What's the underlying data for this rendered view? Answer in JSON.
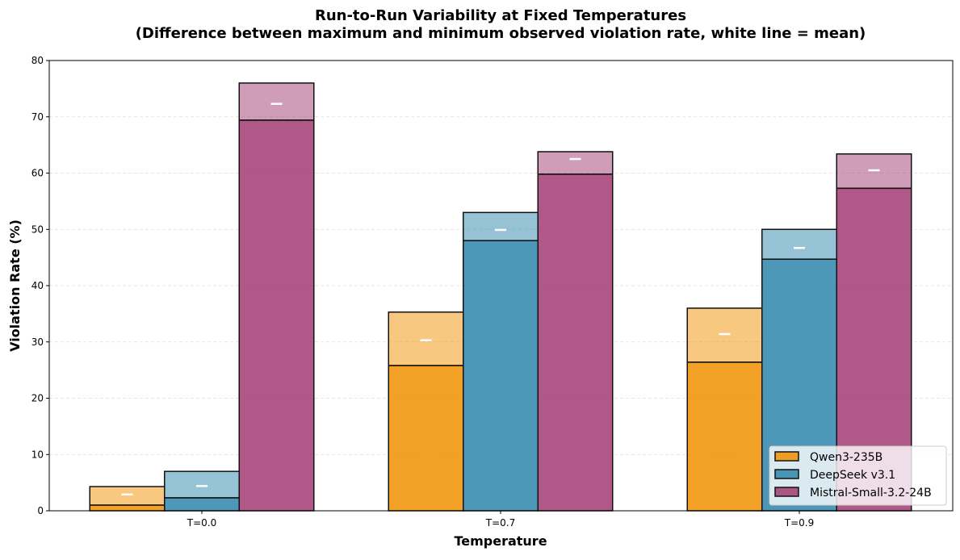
{
  "chart_data": {
    "type": "bar",
    "title": "Run-to-Run Variability at Fixed Temperatures",
    "subtitle": "(Difference between maximum and minimum observed violation rate, white line = mean)",
    "xlabel": "Temperature",
    "ylabel": "Violation Rate (%)",
    "ylim": [
      0,
      80
    ],
    "yticks": [
      0,
      10,
      20,
      30,
      40,
      50,
      60,
      70,
      80
    ],
    "categories": [
      "T=0.0",
      "T=0.7",
      "T=0.9"
    ],
    "grid": "horizontal dashed",
    "legend_position": "bottom-right",
    "series": [
      {
        "name": "Qwen3-235B",
        "color": "#F18F01",
        "min": [
          1.0,
          25.8,
          26.4
        ],
        "max": [
          4.3,
          35.3,
          36.0
        ],
        "mean": [
          2.9,
          30.3,
          31.4
        ]
      },
      {
        "name": "DeepSeek v3.1",
        "color": "#2E86AB",
        "min": [
          2.3,
          48.0,
          44.7
        ],
        "max": [
          7.0,
          53.0,
          50.0
        ],
        "mean": [
          4.4,
          49.9,
          46.7
        ]
      },
      {
        "name": "Mistral-Small-3.2-24B",
        "color": "#A23B72",
        "min": [
          69.4,
          59.8,
          57.3
        ],
        "max": [
          76.0,
          63.8,
          63.4
        ],
        "mean": [
          72.3,
          62.5,
          60.5
        ]
      }
    ]
  }
}
